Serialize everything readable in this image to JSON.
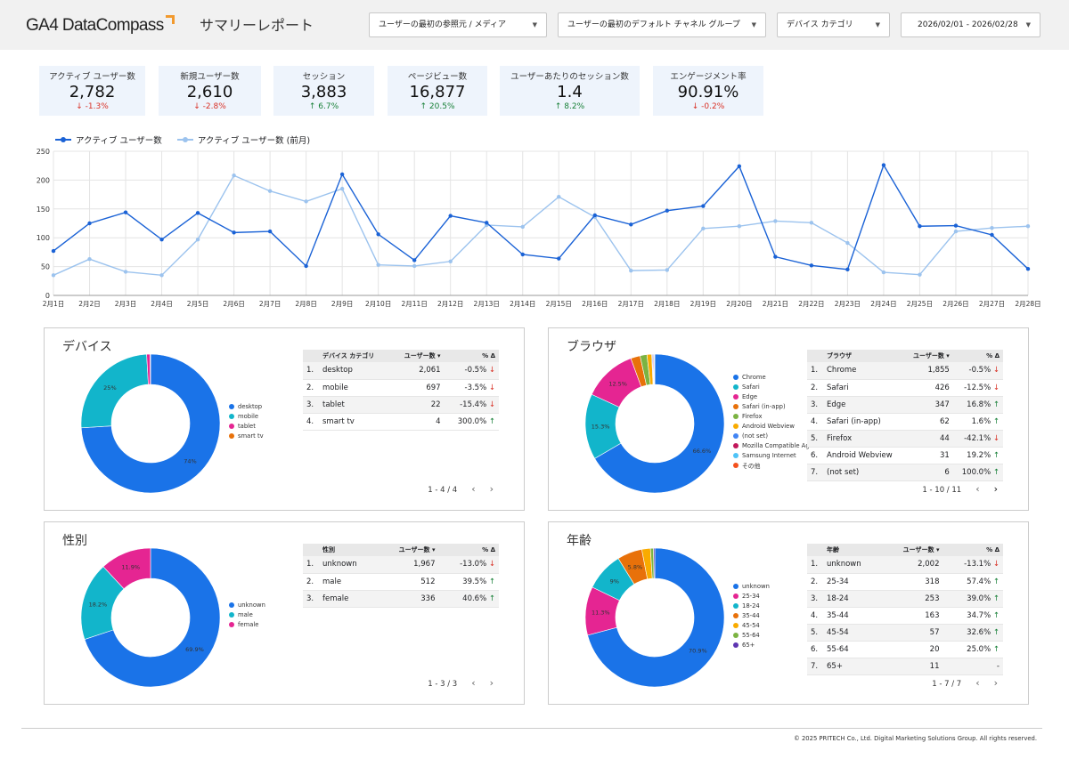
{
  "header": {
    "logo": "GA4 DataCompass",
    "title": "サマリーレポート"
  },
  "filters": [
    {
      "label": "ユーザーの最初の参照元 / メディア"
    },
    {
      "label": "ユーザーの最初のデフォルト チャネル グループ"
    },
    {
      "label": "デバイス カテゴリ"
    },
    {
      "label": "2026/02/01 - 2026/02/28"
    }
  ],
  "kpis": [
    {
      "label": "アクティブ ユーザー数",
      "value": "2,782",
      "delta": "↓ -1.3%",
      "dir": "down"
    },
    {
      "label": "新規ユーザー数",
      "value": "2,610",
      "delta": "↓ -2.8%",
      "dir": "down"
    },
    {
      "label": "セッション",
      "value": "3,883",
      "delta": "↑ 6.7%",
      "dir": "up"
    },
    {
      "label": "ページビュー数",
      "value": "16,877",
      "delta": "↑ 20.5%",
      "dir": "up"
    },
    {
      "label": "ユーザーあたりのセッション数",
      "value": "1.4",
      "delta": "↑ 8.2%",
      "dir": "up"
    },
    {
      "label": "エンゲージメント率",
      "value": "90.91%",
      "delta": "↓ -0.2%",
      "dir": "down"
    }
  ],
  "chart_data": {
    "type": "line",
    "categories": [
      "2月1日",
      "2月2日",
      "2月3日",
      "2月4日",
      "2月5日",
      "2月6日",
      "2月7日",
      "2月8日",
      "2月9日",
      "2月10日",
      "2月11日",
      "2月12日",
      "2月13日",
      "2月14日",
      "2月15日",
      "2月16日",
      "2月17日",
      "2月18日",
      "2月19日",
      "2月20日",
      "2月21日",
      "2月22日",
      "2月23日",
      "2月24日",
      "2月25日",
      "2月26日",
      "2月27日",
      "2月28日"
    ],
    "series": [
      {
        "name": "アクティブ ユーザー数",
        "color": "#1a62d6",
        "values": [
          77,
          125,
          144,
          97,
          143,
          109,
          111,
          51,
          210,
          106,
          61,
          138,
          126,
          71,
          64,
          139,
          123,
          147,
          155,
          224,
          67,
          52,
          45,
          226,
          120,
          121,
          105,
          46
        ]
      },
      {
        "name": "アクティブ ユーザー数 (前月)",
        "color": "#9cc3ee",
        "values": [
          35,
          63,
          41,
          35,
          97,
          208,
          181,
          163,
          185,
          53,
          51,
          59,
          122,
          119,
          171,
          136,
          43,
          44,
          116,
          120,
          129,
          126,
          91,
          40,
          36,
          111,
          117,
          120
        ]
      }
    ],
    "yticks": [
      "250",
      "200",
      "150",
      "100",
      "50",
      "0"
    ],
    "ylim": [
      0,
      250
    ],
    "grid": true
  },
  "panels": [
    {
      "title": "デバイス",
      "columns": [
        "デバイス カテゴリ",
        "ユーザー数 ▾",
        "% Δ"
      ],
      "rows": [
        {
          "n": "1.",
          "name": "desktop",
          "users": "2,061",
          "pct": "-0.5%",
          "dir": "down"
        },
        {
          "n": "2.",
          "name": "mobile",
          "users": "697",
          "pct": "-3.5%",
          "dir": "down"
        },
        {
          "n": "3.",
          "name": "tablet",
          "users": "22",
          "pct": "-15.4%",
          "dir": "down"
        },
        {
          "n": "4.",
          "name": "smart tv",
          "users": "4",
          "pct": "300.0%",
          "dir": "up"
        }
      ],
      "pager": "1 - 4 / 4",
      "legend": [
        {
          "name": "desktop",
          "color": "#1a73e8"
        },
        {
          "name": "mobile",
          "color": "#12b5cb"
        },
        {
          "name": "tablet",
          "color": "#e52592"
        },
        {
          "name": "smart tv",
          "color": "#e8710a"
        }
      ],
      "slices": [
        {
          "value": 74.1,
          "color": "#1a73e8",
          "label": "74%"
        },
        {
          "value": 25.1,
          "color": "#12b5cb",
          "label": "25%"
        },
        {
          "value": 0.8,
          "color": "#e52592",
          "label": ""
        },
        {
          "value": 0.1,
          "color": "#e8710a",
          "label": ""
        }
      ]
    },
    {
      "title": "ブラウザ",
      "columns": [
        "ブラウザ",
        "ユーザー数 ▾",
        "% Δ"
      ],
      "rows": [
        {
          "n": "1.",
          "name": "Chrome",
          "users": "1,855",
          "pct": "-0.5%",
          "dir": "down"
        },
        {
          "n": "2.",
          "name": "Safari",
          "users": "426",
          "pct": "-12.5%",
          "dir": "down"
        },
        {
          "n": "3.",
          "name": "Edge",
          "users": "347",
          "pct": "16.8%",
          "dir": "up"
        },
        {
          "n": "4.",
          "name": "Safari (in-app)",
          "users": "62",
          "pct": "1.6%",
          "dir": "up"
        },
        {
          "n": "5.",
          "name": "Firefox",
          "users": "44",
          "pct": "-42.1%",
          "dir": "down"
        },
        {
          "n": "6.",
          "name": "Android Webview",
          "users": "31",
          "pct": "19.2%",
          "dir": "up"
        },
        {
          "n": "7.",
          "name": "(not set)",
          "users": "6",
          "pct": "100.0%",
          "dir": "up"
        }
      ],
      "pager": "1 - 10 / 11",
      "legend": [
        {
          "name": "Chrome",
          "color": "#1a73e8"
        },
        {
          "name": "Safari",
          "color": "#12b5cb"
        },
        {
          "name": "Edge",
          "color": "#e52592"
        },
        {
          "name": "Safari (in-app)",
          "color": "#e8710a"
        },
        {
          "name": "Firefox",
          "color": "#7cb342"
        },
        {
          "name": "Android Webview",
          "color": "#f9ab00"
        },
        {
          "name": "(not set)",
          "color": "#4285f4"
        },
        {
          "name": "Mozilla Compatible Agent",
          "color": "#c2185b"
        },
        {
          "name": "Samsung Internet",
          "color": "#4fc3f7"
        },
        {
          "name": "その他",
          "color": "#f4511e"
        }
      ],
      "slices": [
        {
          "value": 66.6,
          "color": "#1a73e8",
          "label": "66.6%"
        },
        {
          "value": 15.3,
          "color": "#12b5cb",
          "label": "15.3%"
        },
        {
          "value": 12.5,
          "color": "#e52592",
          "label": "12.5%"
        },
        {
          "value": 2.2,
          "color": "#e8710a",
          "label": ""
        },
        {
          "value": 1.6,
          "color": "#7cb342",
          "label": ""
        },
        {
          "value": 1.1,
          "color": "#f9ab00",
          "label": ""
        },
        {
          "value": 0.2,
          "color": "#4285f4",
          "label": ""
        },
        {
          "value": 0.2,
          "color": "#c2185b",
          "label": ""
        },
        {
          "value": 0.2,
          "color": "#4fc3f7",
          "label": ""
        },
        {
          "value": 0.1,
          "color": "#f4511e",
          "label": ""
        }
      ]
    },
    {
      "title": "性別",
      "columns": [
        "性別",
        "ユーザー数 ▾",
        "% Δ"
      ],
      "rows": [
        {
          "n": "1.",
          "name": "unknown",
          "users": "1,967",
          "pct": "-13.0%",
          "dir": "down"
        },
        {
          "n": "2.",
          "name": "male",
          "users": "512",
          "pct": "39.5%",
          "dir": "up"
        },
        {
          "n": "3.",
          "name": "female",
          "users": "336",
          "pct": "40.6%",
          "dir": "up"
        }
      ],
      "pager": "1 - 3 / 3",
      "legend": [
        {
          "name": "unknown",
          "color": "#1a73e8"
        },
        {
          "name": "male",
          "color": "#12b5cb"
        },
        {
          "name": "female",
          "color": "#e52592"
        }
      ],
      "slices": [
        {
          "value": 69.9,
          "color": "#1a73e8",
          "label": "69.9%"
        },
        {
          "value": 18.2,
          "color": "#12b5cb",
          "label": "18.2%"
        },
        {
          "value": 11.9,
          "color": "#e52592",
          "label": "11.9%"
        }
      ]
    },
    {
      "title": "年齢",
      "columns": [
        "年齢",
        "ユーザー数 ▾",
        "% Δ"
      ],
      "rows": [
        {
          "n": "1.",
          "name": "unknown",
          "users": "2,002",
          "pct": "-13.1%",
          "dir": "down"
        },
        {
          "n": "2.",
          "name": "25-34",
          "users": "318",
          "pct": "57.4%",
          "dir": "up"
        },
        {
          "n": "3.",
          "name": "18-24",
          "users": "253",
          "pct": "39.0%",
          "dir": "up"
        },
        {
          "n": "4.",
          "name": "35-44",
          "users": "163",
          "pct": "34.7%",
          "dir": "up"
        },
        {
          "n": "5.",
          "name": "45-54",
          "users": "57",
          "pct": "32.6%",
          "dir": "up"
        },
        {
          "n": "6.",
          "name": "55-64",
          "users": "20",
          "pct": "25.0%",
          "dir": "up"
        },
        {
          "n": "7.",
          "name": "65+",
          "users": "11",
          "pct": "-",
          "dir": ""
        }
      ],
      "pager": "1 - 7 / 7",
      "legend": [
        {
          "name": "unknown",
          "color": "#1a73e8"
        },
        {
          "name": "25-34",
          "color": "#e52592"
        },
        {
          "name": "18-24",
          "color": "#12b5cb"
        },
        {
          "name": "35-44",
          "color": "#e8710a"
        },
        {
          "name": "45-54",
          "color": "#f9ab00"
        },
        {
          "name": "55-64",
          "color": "#7cb342"
        },
        {
          "name": "65+",
          "color": "#5e35b1"
        }
      ],
      "slices": [
        {
          "value": 70.9,
          "color": "#1a73e8",
          "label": "70.9%"
        },
        {
          "value": 11.3,
          "color": "#e52592",
          "label": "11.3%"
        },
        {
          "value": 9.0,
          "color": "#12b5cb",
          "label": "9%"
        },
        {
          "value": 5.8,
          "color": "#e8710a",
          "label": "5.8%"
        },
        {
          "value": 2.0,
          "color": "#f9ab00",
          "label": ""
        },
        {
          "value": 0.7,
          "color": "#7cb342",
          "label": ""
        },
        {
          "value": 0.3,
          "color": "#5e35b1",
          "label": ""
        }
      ]
    }
  ],
  "footer": "© 2025 PRITECH Co., Ltd. Digital Marketing Solutions Group. All rights reserved."
}
